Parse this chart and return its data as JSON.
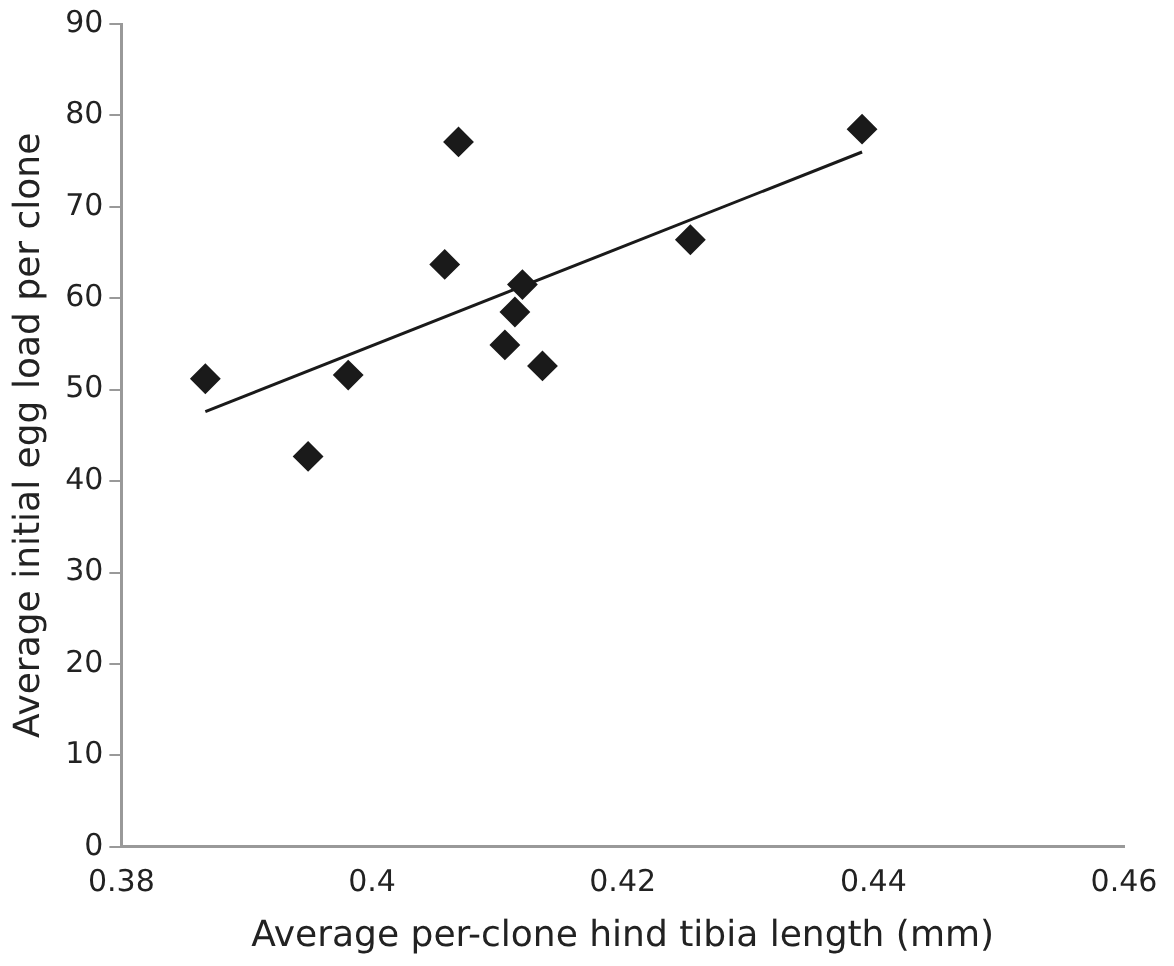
{
  "chart_data": {
    "type": "scatter",
    "xlabel": "Average per-clone hind tibia length (mm)",
    "ylabel": "Average initial egg load per clone",
    "x": [
      0.3867,
      0.3949,
      0.3981,
      0.4058,
      0.4069,
      0.4106,
      0.4114,
      0.412,
      0.4136,
      0.4254,
      0.4391
    ],
    "series": [
      {
        "color": "#1a1a1a",
        "values": [
          51.2,
          42.7,
          51.6,
          63.7,
          77.1,
          54.9,
          58.5,
          61.5,
          52.6,
          66.4,
          78.5
        ],
        "marker": "diamond"
      },
      {
        "type": "line",
        "color": "#1a1a1a",
        "x": [
          0.3867,
          0.4391
        ],
        "values": [
          47.6,
          76.0
        ],
        "marker": "none"
      }
    ],
    "xlim": [
      0.38,
      0.46
    ],
    "xticks": [
      0.38,
      0.4,
      0.42,
      0.44,
      0.46
    ],
    "ylim": [
      0,
      90
    ],
    "yticks": [
      0,
      10,
      20,
      30,
      40,
      50,
      60,
      70,
      80,
      90
    ],
    "grid": false,
    "legend": false
  }
}
